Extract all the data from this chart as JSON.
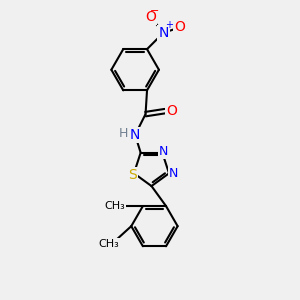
{
  "bg_color": "#f0f0f0",
  "bond_color": "#000000",
  "bond_width": 1.5,
  "atom_colors": {
    "C": "#000000",
    "H": "#708090",
    "N": "#0000ff",
    "O": "#ff0000",
    "S": "#ccaa00"
  },
  "font_size": 9,
  "xlim": [
    0,
    10
  ],
  "ylim": [
    0,
    10
  ]
}
